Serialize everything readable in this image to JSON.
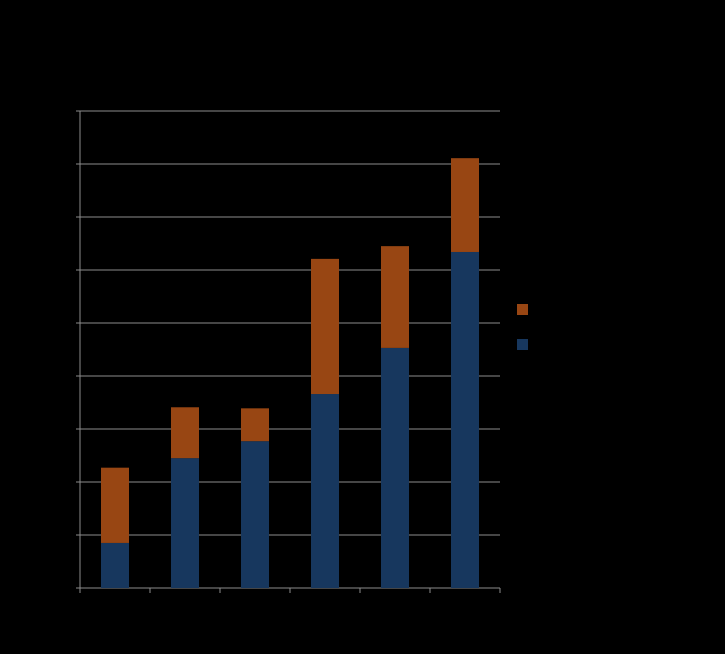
{
  "chart_data": {
    "type": "stacked-bar",
    "categories": [
      null,
      null,
      null,
      null,
      null,
      null
    ],
    "series": [
      {
        "color": "#17375e",
        "values": [
          0.85,
          2.45,
          2.77,
          3.66,
          4.53,
          6.34
        ]
      },
      {
        "color": "#984613",
        "values": [
          1.42,
          0.96,
          0.62,
          2.55,
          1.92,
          1.77
        ]
      }
    ],
    "ylim": [
      0,
      9
    ],
    "yticks": [
      0,
      1,
      2,
      3,
      4,
      5,
      6,
      7,
      8,
      9
    ],
    "grid": true,
    "legend": "right"
  }
}
